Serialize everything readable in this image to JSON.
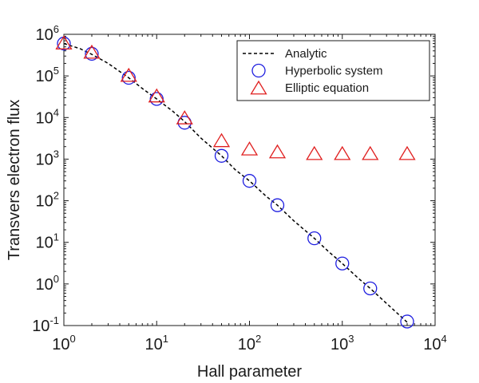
{
  "chart_data": {
    "type": "scatter",
    "xlabel": "Hall parameter",
    "ylabel": "Transvers electron flux",
    "xscale": "log",
    "yscale": "log",
    "xlim": [
      1,
      10000
    ],
    "ylim": [
      0.1,
      1000000
    ],
    "x_ticks": [
      {
        "base": "10",
        "exp": "0",
        "value": 1
      },
      {
        "base": "10",
        "exp": "1",
        "value": 10
      },
      {
        "base": "10",
        "exp": "2",
        "value": 100
      },
      {
        "base": "10",
        "exp": "3",
        "value": 1000
      },
      {
        "base": "10",
        "exp": "4",
        "value": 10000
      }
    ],
    "y_ticks": [
      {
        "base": "10",
        "exp": "-1",
        "value": 0.1
      },
      {
        "base": "10",
        "exp": "0",
        "value": 1
      },
      {
        "base": "10",
        "exp": "1",
        "value": 10
      },
      {
        "base": "10",
        "exp": "2",
        "value": 100
      },
      {
        "base": "10",
        "exp": "3",
        "value": 1000
      },
      {
        "base": "10",
        "exp": "4",
        "value": 10000
      },
      {
        "base": "10",
        "exp": "5",
        "value": 100000
      },
      {
        "base": "10",
        "exp": "6",
        "value": 1000000
      }
    ],
    "grid": false,
    "legend_position": "top-right",
    "series": [
      {
        "name": "Analytic",
        "style": "dashed-line",
        "color": "#000000",
        "x": [
          1,
          1.5,
          2,
          3,
          5,
          7,
          10,
          15,
          20,
          30,
          50,
          70,
          100,
          150,
          200,
          300,
          500,
          700,
          1000,
          1500,
          2000,
          3000,
          5000
        ],
        "y": [
          600000,
          450000,
          330000,
          200000,
          90000,
          50000,
          28000,
          14000,
          8000,
          3200,
          1200,
          560,
          300,
          130,
          78,
          33,
          12.5,
          6.2,
          3.1,
          1.35,
          0.78,
          0.34,
          0.12
        ]
      },
      {
        "name": "Hyperbolic system",
        "style": "circle",
        "color": "#1f1fe0",
        "x": [
          1,
          2,
          5,
          10,
          20,
          50,
          100,
          200,
          500,
          1000,
          2000,
          5000
        ],
        "y": [
          600000,
          340000,
          90000,
          28000,
          7500,
          1200,
          300,
          78,
          12.5,
          3.1,
          0.78,
          0.125
        ]
      },
      {
        "name": "Elliptic equation",
        "style": "triangle",
        "color": "#e02020",
        "x": [
          1,
          2,
          5,
          10,
          20,
          50,
          100,
          200,
          500,
          1000,
          2000,
          5000
        ],
        "y": [
          600000,
          360000,
          100000,
          32000,
          9500,
          2700,
          1700,
          1450,
          1320,
          1320,
          1320,
          1320
        ]
      }
    ]
  }
}
